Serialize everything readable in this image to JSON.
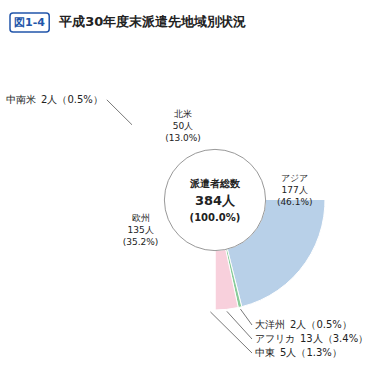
{
  "chart_data": {
    "type": "pie",
    "title": "平成30年度末派遣先地域別状況",
    "title_tag": "図1-4",
    "center_title": "派遣者総数",
    "total": 384,
    "total_label": "384人",
    "total_percentage": 100.0,
    "total_percentage_label": "(100.0%)",
    "categories": [
      "アジア",
      "大洋州",
      "アフリカ",
      "中東",
      "欧州",
      "中南米",
      "北米"
    ],
    "values": [
      177,
      2,
      13,
      5,
      135,
      2,
      50
    ],
    "value_labels": [
      "177人",
      "2人",
      "13人",
      "5人",
      "135人",
      "2人",
      "50人"
    ],
    "percentages": [
      46.1,
      0.5,
      3.4,
      1.3,
      35.2,
      0.5,
      13.0
    ],
    "percentage_labels": [
      "(46.1%)",
      "（0.5%）",
      "（3.4%）",
      "（1.3%）",
      "(35.2%)",
      "（0.5%）",
      "(13.0%)"
    ],
    "colors": [
      "#b8d0e8",
      "#88cc99",
      "#f8d0dc",
      "#c8dce8",
      "#f0c0d8",
      "#d4cc60",
      "#f5b8a0"
    ],
    "data_labels": true
  }
}
